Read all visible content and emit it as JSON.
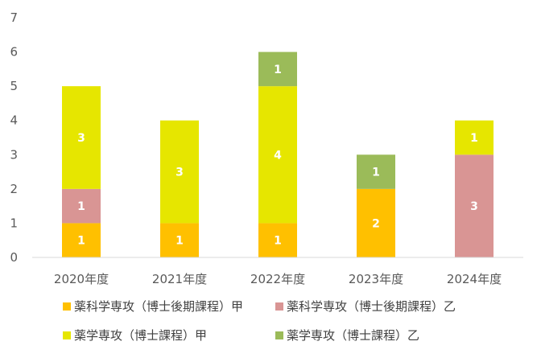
{
  "chart_data": {
    "type": "bar",
    "stacked": true,
    "categories": [
      "2020年度",
      "2021年度",
      "2022年度",
      "2023年度",
      "2024年度"
    ],
    "series": [
      {
        "name": "薬科学専攻（博士後期課程）甲",
        "color": "#ffc000",
        "values": [
          1,
          1,
          1,
          2,
          0
        ]
      },
      {
        "name": "薬科学専攻（博士後期課程）乙",
        "color": "#d99594",
        "values": [
          1,
          0,
          0,
          0,
          3
        ]
      },
      {
        "name": "薬学専攻（博士課程）甲",
        "color": "#e6e600",
        "values": [
          3,
          3,
          4,
          0,
          1
        ]
      },
      {
        "name": "薬学専攻（博士課程）乙",
        "color": "#9bbb59",
        "values": [
          0,
          0,
          1,
          1,
          0
        ]
      }
    ],
    "ylim": [
      0,
      7
    ],
    "yticks": [
      0,
      1,
      2,
      3,
      4,
      5,
      6,
      7
    ],
    "grid": false,
    "legend_position": "bottom",
    "data_labels": true
  }
}
